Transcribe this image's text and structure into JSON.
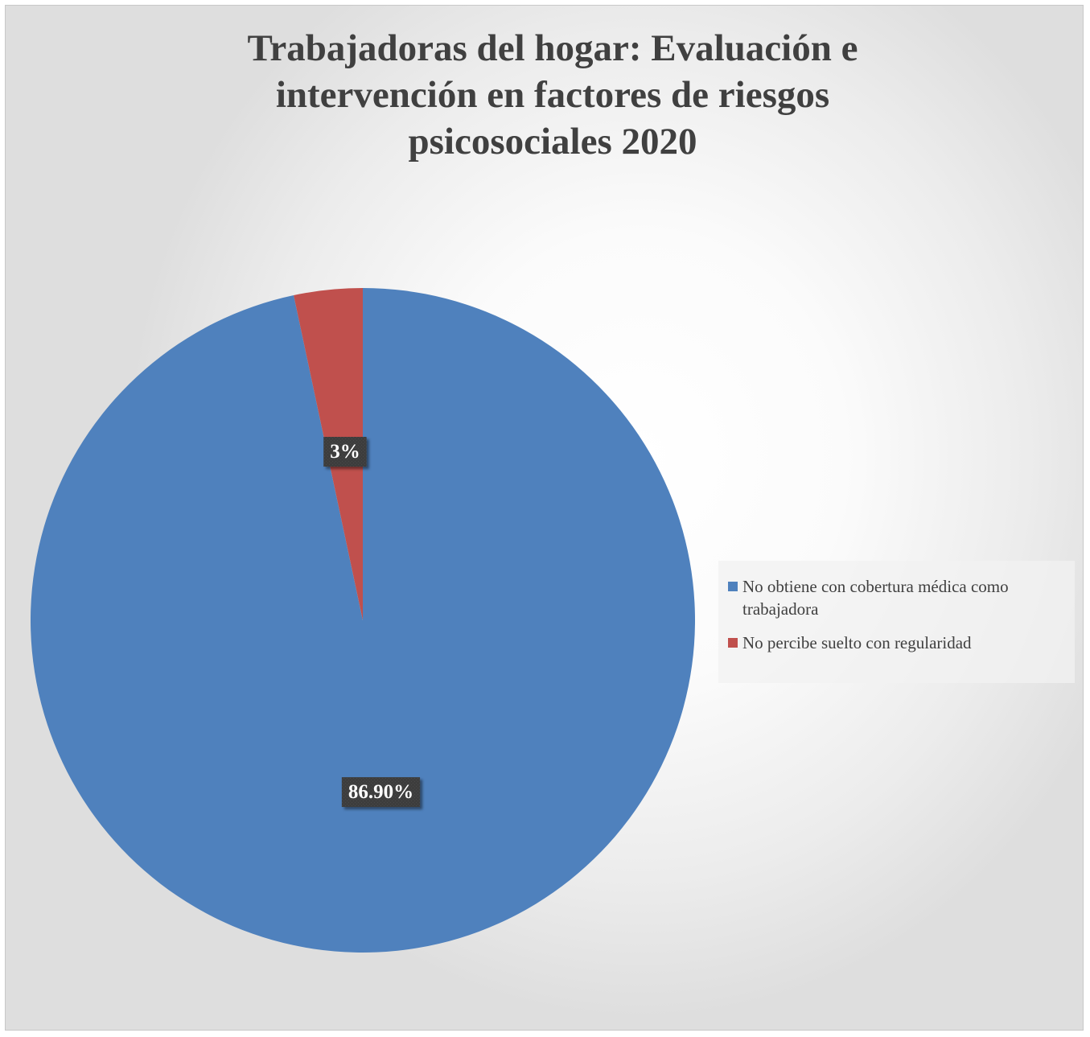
{
  "chart_data": {
    "type": "pie",
    "title": "Trabajadoras del hogar: Evaluación e\nintervención en factores de riesgos\npsicosociales 2020",
    "categories": [
      "No obtiene con cobertura médica como trabajadora",
      "No percibe suelto con regularidad"
    ],
    "values": [
      86.9,
      3
    ],
    "data_labels": [
      "86.90%",
      "3%"
    ],
    "colors": [
      "#4F81BD",
      "#C0504D"
    ],
    "legend_position": "right",
    "label_style": "dark boxed labels"
  }
}
